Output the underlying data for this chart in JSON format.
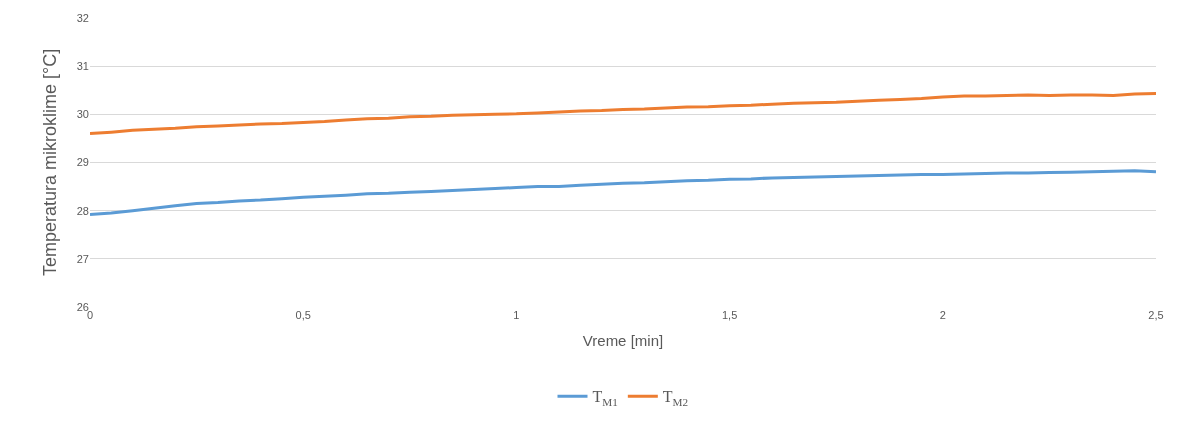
{
  "chart_data": {
    "type": "line",
    "xlabel": "Vreme [min]",
    "ylabel": "Temperatura mikroklime [°C]",
    "x": [
      0,
      0.05,
      0.1,
      0.15,
      0.2,
      0.25,
      0.3,
      0.35,
      0.4,
      0.45,
      0.5,
      0.55,
      0.6,
      0.65,
      0.7,
      0.75,
      0.8,
      0.85,
      0.9,
      0.95,
      1.0,
      1.05,
      1.1,
      1.15,
      1.2,
      1.25,
      1.3,
      1.35,
      1.4,
      1.45,
      1.5,
      1.55,
      1.6,
      1.65,
      1.7,
      1.75,
      1.8,
      1.85,
      1.9,
      1.95,
      2.0,
      2.05,
      2.1,
      2.15,
      2.2,
      2.25,
      2.3,
      2.35,
      2.4,
      2.45,
      2.5
    ],
    "series": [
      {
        "name": "T$_{M1}$",
        "color": "#5b9bd5",
        "values": [
          27.92,
          27.95,
          28.0,
          28.05,
          28.1,
          28.15,
          28.17,
          28.2,
          28.22,
          28.25,
          28.28,
          28.3,
          28.32,
          28.35,
          28.36,
          28.38,
          28.4,
          28.42,
          28.44,
          28.46,
          28.48,
          28.5,
          28.5,
          28.53,
          28.55,
          28.57,
          28.58,
          28.6,
          28.62,
          28.63,
          28.65,
          28.66,
          28.68,
          28.69,
          28.7,
          28.71,
          28.72,
          28.73,
          28.74,
          28.75,
          28.75,
          28.76,
          28.77,
          28.78,
          28.78,
          28.79,
          28.8,
          28.81,
          28.82,
          28.83,
          28.81
        ]
      },
      {
        "name": "T$_{M2}$",
        "color": "#ed7d31",
        "values": [
          29.6,
          29.63,
          29.67,
          29.69,
          29.71,
          29.74,
          29.76,
          29.78,
          29.8,
          29.81,
          29.83,
          29.85,
          29.88,
          29.91,
          29.92,
          29.95,
          29.96,
          29.98,
          29.99,
          30.0,
          30.01,
          30.03,
          30.05,
          30.07,
          30.08,
          30.1,
          30.11,
          30.13,
          30.15,
          30.16,
          30.18,
          30.19,
          30.21,
          30.23,
          30.24,
          30.25,
          30.27,
          30.29,
          30.31,
          30.33,
          30.36,
          30.38,
          30.38,
          30.39,
          30.4,
          30.39,
          30.4,
          30.4,
          30.39,
          30.42,
          30.43
        ]
      }
    ],
    "xlim": [
      0,
      2.5
    ],
    "xticks": [
      0,
      {
        "value": 0.5,
        "label": "0,5"
      },
      1,
      {
        "value": 1.5,
        "label": "1,5"
      },
      2,
      {
        "value": 2.5,
        "label": "2,5"
      }
    ],
    "ylim": [
      26,
      32
    ],
    "yticks": [
      26,
      27,
      28,
      29,
      30,
      31,
      32
    ],
    "grid": "y",
    "legend": "bottom",
    "marker": "none",
    "line_style": "solid"
  }
}
